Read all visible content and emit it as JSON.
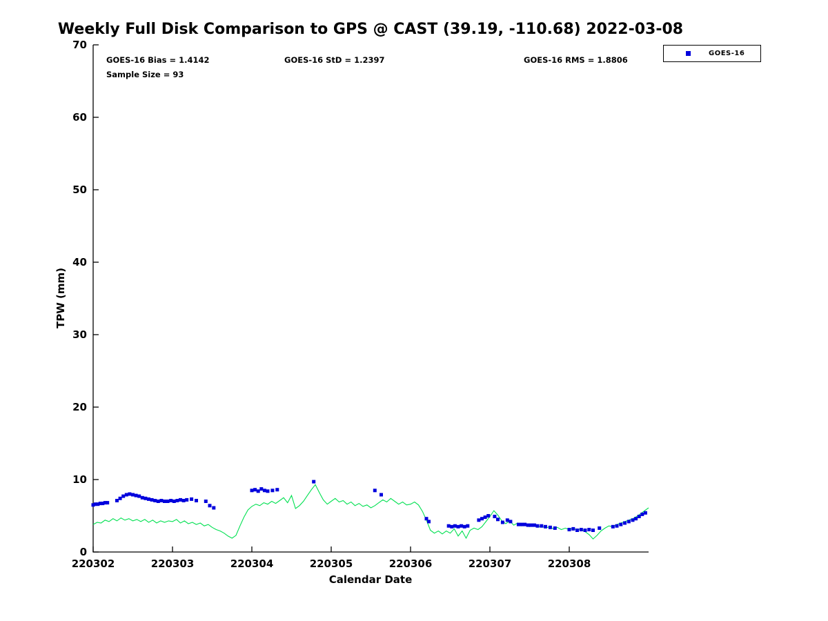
{
  "title": "Weekly Full Disk Comparison to GPS @ CAST (39.19, -110.68) 2022-03-08",
  "annotations": {
    "bias": "GOES-16 Bias = 1.4142",
    "std": "GOES-16 StD = 1.2397",
    "rms": "GOES-16 RMS = 1.8806",
    "sample_size": "Sample Size = 93"
  },
  "axes": {
    "xlabel": "Calendar Date",
    "ylabel": "TPW (mm)"
  },
  "legend": {
    "items": [
      {
        "label": "GOES-16",
        "marker": "square",
        "marker_color": "#0000dd"
      }
    ]
  },
  "chart_data": {
    "type": "line+scatter",
    "title": "Weekly Full Disk Comparison to GPS @ CAST (39.19, -110.68) 2022-03-08",
    "xlabel": "Calendar Date",
    "ylabel": "TPW (mm)",
    "x_unit": "days since 220302",
    "x_domain": [
      0,
      7
    ],
    "x_ticks": [
      "220302",
      "220303",
      "220304",
      "220305",
      "220306",
      "220307",
      "220308"
    ],
    "x_tick_positions": [
      0,
      1,
      2,
      3,
      4,
      5,
      6
    ],
    "ylim": [
      0,
      70
    ],
    "y_ticks": [
      0,
      10,
      20,
      30,
      40,
      50,
      60,
      70
    ],
    "grid": false,
    "legend_position": "top-right",
    "stats": {
      "bias": 1.4142,
      "std": 1.2397,
      "rms": 1.8806,
      "sample_size": 93
    },
    "series": [
      {
        "name": "GPS",
        "type": "line",
        "color": "#00e050",
        "x_start": 0.0,
        "x_step": 0.05,
        "y": [
          3.8,
          4.1,
          4.0,
          4.4,
          4.2,
          4.6,
          4.3,
          4.7,
          4.4,
          4.6,
          4.3,
          4.5,
          4.2,
          4.5,
          4.1,
          4.4,
          4.0,
          4.3,
          4.1,
          4.3,
          4.2,
          4.5,
          4.0,
          4.3,
          3.9,
          4.1,
          3.8,
          4.0,
          3.6,
          3.8,
          3.4,
          3.1,
          2.9,
          2.6,
          2.2,
          1.9,
          2.3,
          3.6,
          4.8,
          5.8,
          6.3,
          6.6,
          6.4,
          6.8,
          6.6,
          7.0,
          6.7,
          7.1,
          7.5,
          6.8,
          7.8,
          6.0,
          6.4,
          7.0,
          7.8,
          8.6,
          9.3,
          8.2,
          7.2,
          6.6,
          7.0,
          7.4,
          6.9,
          7.1,
          6.6,
          6.9,
          6.4,
          6.7,
          6.3,
          6.5,
          6.1,
          6.4,
          6.8,
          7.2,
          6.9,
          7.4,
          7.0,
          6.6,
          6.9,
          6.5,
          6.6,
          6.9,
          6.5,
          5.6,
          4.4,
          3.0,
          2.6,
          2.9,
          2.5,
          2.9,
          2.6,
          3.2,
          2.2,
          2.9,
          1.9,
          3.0,
          3.3,
          3.1,
          3.5,
          4.2,
          4.9,
          5.7,
          5.1,
          4.3,
          3.9,
          4.3,
          3.7,
          4.0,
          3.6,
          3.9,
          3.5,
          3.7,
          3.4,
          3.6,
          3.3,
          3.5,
          3.2,
          3.4,
          3.1,
          3.3,
          3.1,
          3.3,
          3.0,
          3.2,
          2.8,
          2.4,
          1.8,
          2.3,
          2.9,
          3.3,
          3.6,
          3.5,
          3.8,
          4.0,
          4.2,
          4.4,
          4.6,
          4.9,
          5.3,
          5.7,
          6.1
        ]
      },
      {
        "name": "GOES-16",
        "type": "scatter",
        "marker": "square",
        "color": "#0000dd",
        "x": [
          0.0,
          0.03,
          0.06,
          0.09,
          0.12,
          0.15,
          0.18,
          0.3,
          0.34,
          0.38,
          0.42,
          0.46,
          0.5,
          0.54,
          0.58,
          0.62,
          0.66,
          0.7,
          0.74,
          0.78,
          0.82,
          0.86,
          0.9,
          0.94,
          0.98,
          1.02,
          1.06,
          1.1,
          1.14,
          1.18,
          1.24,
          1.3,
          1.42,
          1.47,
          1.52,
          2.0,
          2.04,
          2.08,
          2.12,
          2.16,
          2.2,
          2.26,
          2.32,
          2.78,
          3.55,
          3.63,
          4.2,
          4.23,
          4.48,
          4.52,
          4.56,
          4.6,
          4.64,
          4.68,
          4.72,
          4.86,
          4.9,
          4.94,
          4.98,
          5.06,
          5.1,
          5.16,
          5.22,
          5.26,
          5.36,
          5.4,
          5.44,
          5.48,
          5.52,
          5.56,
          5.6,
          5.65,
          5.7,
          5.76,
          5.82,
          6.0,
          6.05,
          6.1,
          6.15,
          6.2,
          6.25,
          6.3,
          6.38,
          6.55,
          6.6,
          6.65,
          6.7,
          6.75,
          6.8,
          6.84,
          6.88,
          6.92,
          6.96
        ],
        "y": [
          6.5,
          6.6,
          6.6,
          6.7,
          6.7,
          6.8,
          6.8,
          7.1,
          7.4,
          7.7,
          7.9,
          8.0,
          7.9,
          7.8,
          7.7,
          7.5,
          7.4,
          7.3,
          7.2,
          7.1,
          7.0,
          7.1,
          7.0,
          7.0,
          7.1,
          7.0,
          7.1,
          7.2,
          7.1,
          7.2,
          7.3,
          7.1,
          7.0,
          6.4,
          6.1,
          8.5,
          8.6,
          8.4,
          8.7,
          8.5,
          8.4,
          8.5,
          8.6,
          9.7,
          8.5,
          7.9,
          4.6,
          4.2,
          3.6,
          3.5,
          3.6,
          3.5,
          3.6,
          3.5,
          3.6,
          4.4,
          4.6,
          4.8,
          5.0,
          4.9,
          4.5,
          4.1,
          4.4,
          4.2,
          3.8,
          3.8,
          3.8,
          3.7,
          3.7,
          3.7,
          3.6,
          3.6,
          3.5,
          3.4,
          3.3,
          3.1,
          3.2,
          3.0,
          3.1,
          3.0,
          3.1,
          3.0,
          3.3,
          3.5,
          3.6,
          3.8,
          4.0,
          4.2,
          4.4,
          4.6,
          4.9,
          5.2,
          5.4
        ]
      }
    ]
  }
}
